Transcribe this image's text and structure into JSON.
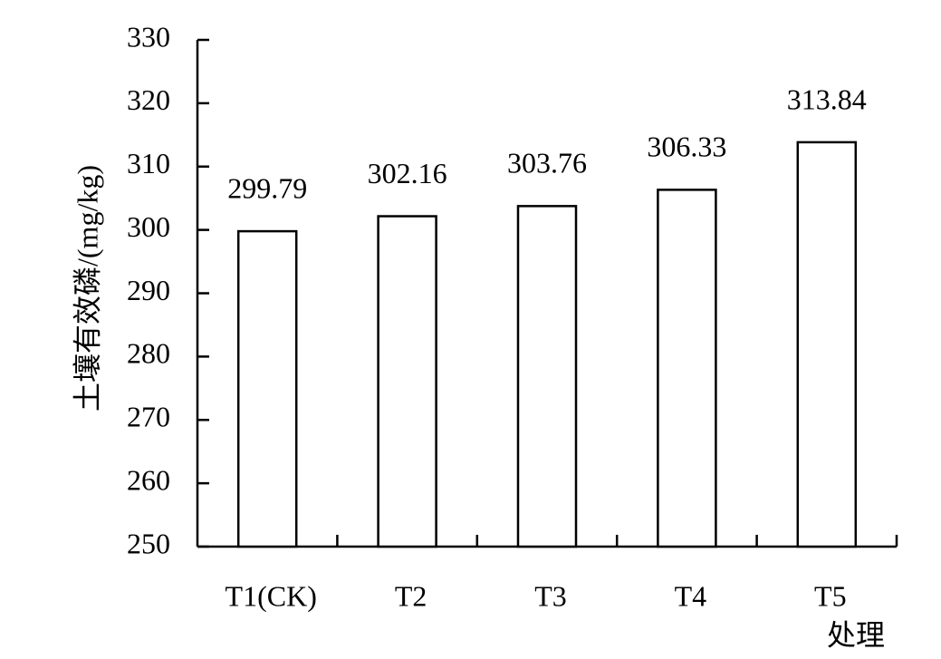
{
  "chart_data": {
    "type": "bar",
    "xlabel": "处理",
    "ylabel": "土壤有效磷/(mg/kg)",
    "categories": [
      "T1(CK)",
      "T2",
      "T3",
      "T4",
      "T5"
    ],
    "values": [
      299.79,
      302.16,
      303.76,
      306.33,
      313.84
    ],
    "color": "#ffffff",
    "ylim": [
      250,
      330
    ],
    "yticks": [
      250,
      260,
      270,
      280,
      290,
      300,
      310,
      320,
      330
    ],
    "grid": false
  }
}
